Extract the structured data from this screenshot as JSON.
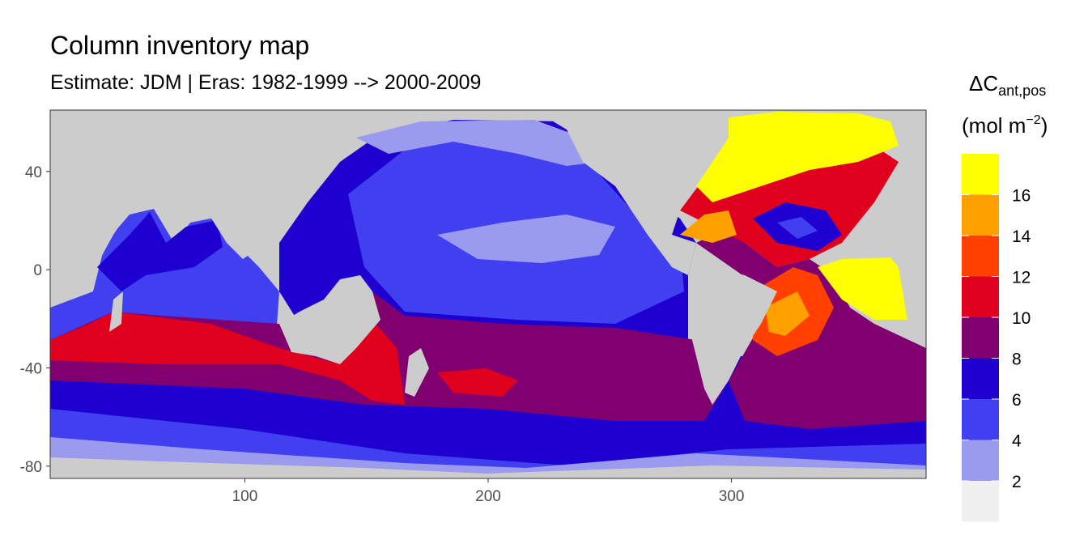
{
  "title": "Column inventory map",
  "subtitle": "Estimate: JDM  | Eras: 1982-1999 --> 2000-2009",
  "legend": {
    "title_main": "ΔC",
    "title_sub": "ant,pos",
    "unit_open": "(mol m",
    "unit_sup": "−2",
    "unit_close": ")",
    "labels": [
      "2",
      "4",
      "6",
      "8",
      "10",
      "12",
      "14",
      "16"
    ],
    "colors": [
      "#f0f0f0",
      "#9a9aee",
      "#4040f0",
      "#1e00d0",
      "#800070",
      "#e0001e",
      "#ff4000",
      "#ffa000",
      "#ffff00"
    ]
  },
  "chart_data": {
    "type": "heatmap",
    "x_ticks": [
      100,
      200,
      300
    ],
    "y_ticks": [
      40,
      0,
      -40,
      -80
    ],
    "xlim": [
      20,
      380
    ],
    "ylim": [
      -85,
      65
    ],
    "land_color": "#cccccc",
    "bins": [
      0,
      2,
      4,
      6,
      8,
      10,
      12,
      14,
      16,
      18
    ]
  }
}
